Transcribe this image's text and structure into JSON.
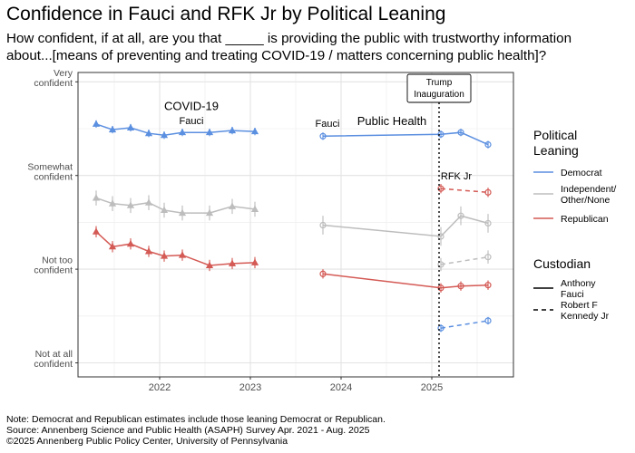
{
  "title": "Confidence in Fauci and RFK Jr by Political Leaning",
  "subtitle_line1": "How confident, if at all, are you that _____ is providing the public with trustworthy information",
  "subtitle_line2": "about...[means of preventing and treating COVID-19 / matters concerning public health]?",
  "footnotes": [
    "Note: Democrat and Republican estimates include those leaning Democrat or Republican.",
    "Source: Annenberg Science and Public Health (ASAPH) Survey Apr. 2021 - Aug. 2025",
    "©2025 Annenberg Public Policy Center, University of Pennsylvania"
  ],
  "chart_data": {
    "type": "line",
    "x_ticks": [
      "2022",
      "2023",
      "2024",
      "2025"
    ],
    "y_ticks": [
      {
        "value": 4,
        "lines": [
          "Very",
          "confident"
        ]
      },
      {
        "value": 3,
        "lines": [
          "Somewhat",
          "confident"
        ]
      },
      {
        "value": 2,
        "lines": [
          "Not too",
          "confident"
        ]
      },
      {
        "value": 1,
        "lines": [
          "Not at all",
          "confident"
        ]
      }
    ],
    "xlim": [
      2021.1,
      2025.9
    ],
    "ylim": [
      0.85,
      4.1
    ],
    "grid": true,
    "legend_position": "right",
    "colors": {
      "Democrat": "#5b8fe0",
      "Independent/Other/None": "#bdbdbd",
      "Republican": "#d45a55"
    },
    "annotations": {
      "covid_label": "COVID-19",
      "public_health_label": "Public Health",
      "fauci_label_1": "Fauci",
      "fauci_label_2": "Fauci",
      "rfk_label": "RFK Jr",
      "inauguration_lines": [
        "Trump",
        "Inauguration"
      ],
      "inauguration_x": 2025.08
    },
    "series": [
      {
        "name": "Democrat",
        "custodian": "Anthony Fauci",
        "segment": "COVID-19",
        "marker": "triangle",
        "x": [
          2021.3,
          2021.48,
          2021.68,
          2021.88,
          2022.05,
          2022.25,
          2022.55,
          2022.8,
          2023.05
        ],
        "y": [
          3.55,
          3.49,
          3.51,
          3.45,
          3.43,
          3.46,
          3.46,
          3.48,
          3.47
        ],
        "err": 0.04
      },
      {
        "name": "Independent/Other/None",
        "custodian": "Anthony Fauci",
        "segment": "COVID-19",
        "marker": "triangle",
        "x": [
          2021.3,
          2021.48,
          2021.68,
          2021.88,
          2022.05,
          2022.25,
          2022.55,
          2022.8,
          2023.05
        ],
        "y": [
          2.76,
          2.7,
          2.68,
          2.71,
          2.63,
          2.6,
          2.6,
          2.67,
          2.64
        ],
        "err": 0.08
      },
      {
        "name": "Republican",
        "custodian": "Anthony Fauci",
        "segment": "COVID-19",
        "marker": "triangle",
        "x": [
          2021.3,
          2021.48,
          2021.68,
          2021.88,
          2022.05,
          2022.25,
          2022.55,
          2022.8,
          2023.05
        ],
        "y": [
          2.4,
          2.24,
          2.27,
          2.19,
          2.14,
          2.15,
          2.04,
          2.06,
          2.07
        ],
        "err": 0.06
      },
      {
        "name": "Democrat",
        "custodian": "Anthony Fauci",
        "segment": "Public Health",
        "marker": "circle",
        "x": [
          2023.8,
          2025.1,
          2025.32,
          2025.62
        ],
        "y": [
          3.42,
          3.44,
          3.46,
          3.33
        ],
        "err": 0.04
      },
      {
        "name": "Independent/Other/None",
        "custodian": "Anthony Fauci",
        "segment": "Public Health",
        "marker": "circle",
        "x": [
          2023.8,
          2025.1,
          2025.32,
          2025.62
        ],
        "y": [
          2.47,
          2.35,
          2.57,
          2.49
        ],
        "err": 0.1
      },
      {
        "name": "Republican",
        "custodian": "Anthony Fauci",
        "segment": "Public Health",
        "marker": "circle",
        "x": [
          2023.8,
          2025.1,
          2025.32,
          2025.62
        ],
        "y": [
          1.95,
          1.8,
          1.82,
          1.83
        ],
        "err": 0.05
      },
      {
        "name": "Republican",
        "custodian": "Robert F Kennedy Jr",
        "segment": "Public Health",
        "marker": "circle",
        "x": [
          2025.1,
          2025.62
        ],
        "y": [
          2.86,
          2.82
        ],
        "err": 0.05
      },
      {
        "name": "Independent/Other/None",
        "custodian": "Robert F Kennedy Jr",
        "segment": "Public Health",
        "marker": "circle",
        "x": [
          2025.1,
          2025.62
        ],
        "y": [
          2.05,
          2.13
        ],
        "err": 0.07
      },
      {
        "name": "Democrat",
        "custodian": "Robert F Kennedy Jr",
        "segment": "Public Health",
        "marker": "circle",
        "x": [
          2025.1,
          2025.62
        ],
        "y": [
          1.37,
          1.45
        ],
        "err": 0.04
      }
    ],
    "legend": {
      "party_title": [
        "Political",
        "Leaning"
      ],
      "party_items": [
        {
          "lines": [
            "Democrat"
          ],
          "color": "#5b8fe0"
        },
        {
          "lines": [
            "Independent/",
            "Other/None"
          ],
          "color": "#bdbdbd"
        },
        {
          "lines": [
            "Republican"
          ],
          "color": "#d45a55"
        }
      ],
      "custodian_title": "Custodian",
      "custodian_items": [
        {
          "lines": [
            "Anthony",
            "Fauci"
          ],
          "dash": false
        },
        {
          "lines": [
            "Robert F",
            "Kennedy Jr"
          ],
          "dash": true
        }
      ]
    }
  }
}
